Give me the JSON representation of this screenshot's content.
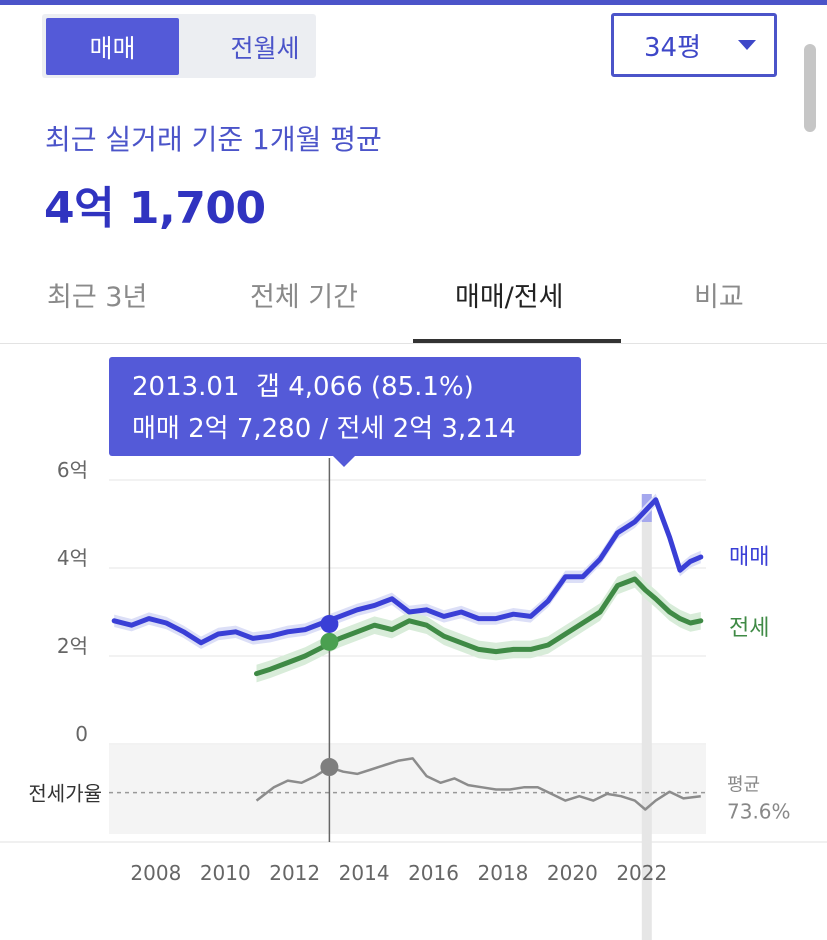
{
  "header": {
    "seg_buy": "매매",
    "seg_rent": "전월세",
    "size_select": "34평"
  },
  "summary": {
    "subtitle": "최근 실거래 기준 1개월 평균",
    "price": "4억 1,700"
  },
  "tabs": [
    "최근 3년",
    "전체 기간",
    "매매/전세",
    "비교"
  ],
  "active_tab": 2,
  "colors": {
    "accent": "#4b54c9",
    "sale": "#3a3fd6",
    "jeonse": "#3f8a45",
    "ratio": "#8c8c8c",
    "band_sale": "#dcdff7",
    "band_jeonse": "#d8ecd9"
  },
  "tooltip": {
    "line1": "2013.01  갭 4,066 (85.1%)",
    "line2": "매매 2억 7,280 / 전세 2억 3,214"
  },
  "chart_data": {
    "type": "line",
    "y_unit": "억",
    "yticks": [
      {
        "value": 6,
        "label": "6억"
      },
      {
        "value": 4,
        "label": "4억"
      },
      {
        "value": 2,
        "label": "2억"
      },
      {
        "value": 0,
        "label": "0"
      }
    ],
    "xticks": [
      2008,
      2010,
      2012,
      2014,
      2016,
      2018,
      2020,
      2022
    ],
    "xlim": [
      2006.65,
      2023.85
    ],
    "ylim": [
      0,
      6
    ],
    "series": [
      {
        "name": "매매",
        "x": [
          2006.8,
          2007.3,
          2007.8,
          2008.3,
          2008.8,
          2009.3,
          2009.8,
          2010.3,
          2010.8,
          2011.3,
          2011.8,
          2012.3,
          2012.8,
          2013.3,
          2013.8,
          2014.3,
          2014.8,
          2015.3,
          2015.8,
          2016.3,
          2016.8,
          2017.3,
          2017.8,
          2018.3,
          2018.8,
          2019.3,
          2019.8,
          2020.3,
          2020.8,
          2021.3,
          2021.8,
          2022.1,
          2022.4,
          2022.8,
          2023.1,
          2023.4,
          2023.7
        ],
        "values": [
          2.8,
          2.7,
          2.85,
          2.75,
          2.55,
          2.3,
          2.5,
          2.55,
          2.4,
          2.45,
          2.55,
          2.6,
          2.75,
          2.9,
          3.05,
          3.15,
          3.3,
          3.0,
          3.05,
          2.9,
          3.0,
          2.85,
          2.85,
          2.95,
          2.9,
          3.25,
          3.8,
          3.8,
          4.2,
          4.8,
          5.05,
          5.3,
          5.55,
          4.7,
          3.95,
          4.15,
          4.25
        ]
      },
      {
        "name": "전세",
        "x": [
          2010.9,
          2011.3,
          2011.8,
          2012.3,
          2012.8,
          2013.3,
          2013.8,
          2014.3,
          2014.8,
          2015.3,
          2015.8,
          2016.3,
          2016.8,
          2017.3,
          2017.8,
          2018.3,
          2018.8,
          2019.3,
          2019.8,
          2020.3,
          2020.8,
          2021.3,
          2021.8,
          2022.1,
          2022.4,
          2022.8,
          2023.1,
          2023.4,
          2023.7
        ],
        "values": [
          1.6,
          1.7,
          1.85,
          2.0,
          2.2,
          2.4,
          2.55,
          2.7,
          2.6,
          2.8,
          2.7,
          2.45,
          2.3,
          2.15,
          2.1,
          2.15,
          2.15,
          2.25,
          2.5,
          2.75,
          3.0,
          3.6,
          3.75,
          3.5,
          3.3,
          3.0,
          2.85,
          2.75,
          2.8
        ]
      }
    ],
    "ratio": {
      "label": "전세가율",
      "avg_label": "평균",
      "avg_value": "73.6%",
      "avg": 73.6,
      "x": [
        2010.9,
        2011.4,
        2011.8,
        2012.2,
        2012.6,
        2013.0,
        2013.4,
        2013.8,
        2014.2,
        2014.6,
        2015.0,
        2015.4,
        2015.8,
        2016.2,
        2016.6,
        2017.0,
        2017.4,
        2017.8,
        2018.2,
        2018.6,
        2019.0,
        2019.4,
        2019.8,
        2020.2,
        2020.6,
        2021.0,
        2021.4,
        2021.8,
        2022.1,
        2022.4,
        2022.8,
        2023.2,
        2023.7
      ],
      "values": [
        70,
        76,
        79,
        78,
        81,
        85,
        83,
        82,
        84,
        86,
        88,
        89,
        81,
        78,
        80,
        77,
        76,
        75,
        75,
        76,
        76,
        73,
        70,
        72,
        70,
        73,
        72,
        70,
        66,
        70,
        74,
        71,
        72
      ]
    },
    "selected": {
      "x": 2013.0,
      "sale": 2.728,
      "jeonse": 2.3214,
      "ratio": 85.1
    }
  }
}
